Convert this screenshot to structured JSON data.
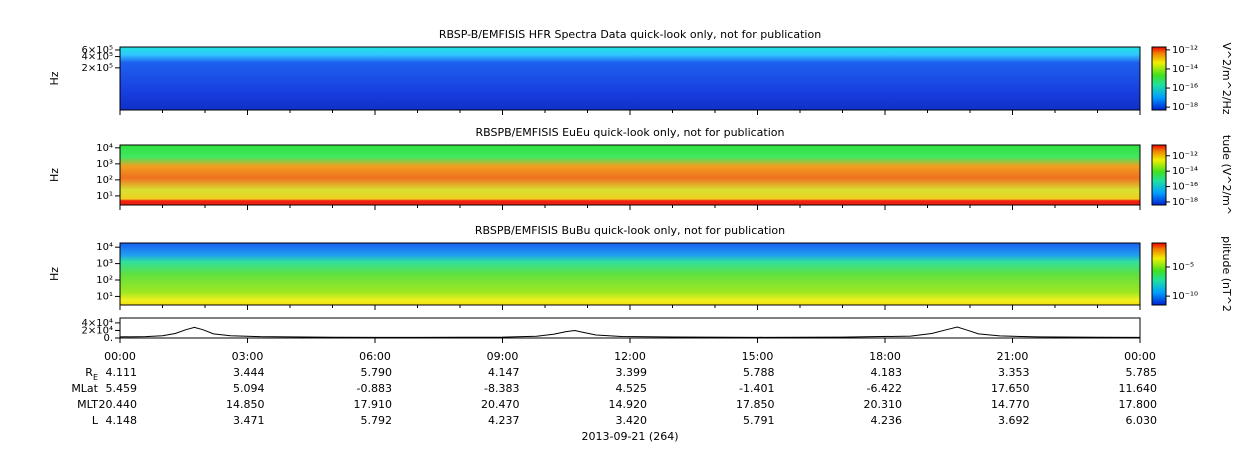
{
  "chart_data": [
    {
      "type": "spectrogram",
      "title": "RBSP-B/EMFISIS  HFR Spectra Data quick-look only, not for publication",
      "ylabel": "Hz",
      "ylog": true,
      "ylim": [
        15000,
        720000
      ],
      "yticks": [
        {
          "value": 200000,
          "label": "2×10⁵"
        },
        {
          "value": 400000,
          "label": "4×10⁵"
        },
        {
          "value": 600000,
          "label": "6×10⁵"
        }
      ],
      "colorbar_label": "V^2/m^2/Hz",
      "clim": [
        5e-19,
        2e-12
      ],
      "cticks": [
        {
          "value": 1e-12,
          "label": "10⁻¹²"
        },
        {
          "value": 1e-14,
          "label": "10⁻¹⁴"
        },
        {
          "value": 1e-16,
          "label": "10⁻¹⁶"
        },
        {
          "value": 1e-18,
          "label": "10⁻¹⁸"
        }
      ]
    },
    {
      "type": "spectrogram",
      "title": "RBSPB/EMFISIS  EuEu quick-look only, not for publication",
      "ylabel": "Hz",
      "ylog": true,
      "ylim": [
        2.7,
        15000
      ],
      "yticks": [
        {
          "value": 10,
          "label": "10¹"
        },
        {
          "value": 100,
          "label": "10²"
        },
        {
          "value": 1000,
          "label": "10³"
        },
        {
          "value": 10000,
          "label": "10⁴"
        }
      ],
      "colorbar_label": "tude (V^2/m^",
      "clim": [
        4e-19,
        2.5e-11
      ],
      "cticks": [
        {
          "value": 1e-12,
          "label": "10⁻¹²"
        },
        {
          "value": 1e-14,
          "label": "10⁻¹⁴"
        },
        {
          "value": 1e-16,
          "label": "10⁻¹⁶"
        },
        {
          "value": 1e-18,
          "label": "10⁻¹⁸"
        }
      ]
    },
    {
      "type": "spectrogram",
      "title": "RBSPB/EMFISIS  BuBu quick-look only, not for publication",
      "ylabel": "Hz",
      "ylog": true,
      "ylim": [
        3,
        18000
      ],
      "yticks": [
        {
          "value": 10,
          "label": "10¹"
        },
        {
          "value": 100,
          "label": "10²"
        },
        {
          "value": 1000,
          "label": "10³"
        },
        {
          "value": 10000,
          "label": "10⁴"
        }
      ],
      "colorbar_label": "plitude (nT^2",
      "clim": [
        3e-12,
        0.13
      ],
      "cticks": [
        {
          "value": 1e-05,
          "label": "10⁻⁵"
        },
        {
          "value": 1e-10,
          "label": "10⁻¹⁰"
        }
      ]
    },
    {
      "type": "line",
      "ylim": [
        0,
        53000
      ],
      "yticks": [
        {
          "value": 0,
          "label": "0."
        },
        {
          "value": 20000,
          "label": "2×10⁴"
        },
        {
          "value": 40000,
          "label": "4×10⁴"
        }
      ],
      "xlim": [
        0,
        24
      ],
      "xticks": [
        {
          "value": 0,
          "label": "00:00"
        },
        {
          "value": 3,
          "label": "03:00"
        },
        {
          "value": 6,
          "label": "06:00"
        },
        {
          "value": 9,
          "label": "09:00"
        },
        {
          "value": 12,
          "label": "12:00"
        },
        {
          "value": 15,
          "label": "15:00"
        },
        {
          "value": 18,
          "label": "18:00"
        },
        {
          "value": 21,
          "label": "21:00"
        },
        {
          "value": 24,
          "label": "00:00"
        }
      ],
      "xlabel": "2013-09-21 (264)",
      "x": [
        0,
        0.6,
        1.0,
        1.3,
        1.55,
        1.75,
        1.95,
        2.2,
        2.6,
        3.3,
        5,
        7,
        9,
        9.8,
        10.2,
        10.5,
        10.7,
        10.9,
        11.2,
        11.8,
        13,
        15,
        17,
        18.6,
        19.1,
        19.45,
        19.7,
        19.9,
        20.2,
        20.7,
        21.6,
        23,
        24
      ],
      "values": [
        3000,
        3500,
        6000,
        12000,
        22000,
        28000,
        22000,
        11000,
        6000,
        3500,
        2000,
        1600,
        2200,
        4500,
        10000,
        17000,
        20000,
        15000,
        8000,
        4000,
        2500,
        1800,
        2200,
        5000,
        12000,
        22000,
        29000,
        22000,
        11000,
        5500,
        3000,
        2000,
        1800
      ]
    }
  ],
  "ephemeris": {
    "rows": [
      {
        "label": "R",
        "sub": "E",
        "values": [
          "4.111",
          "3.444",
          "5.790",
          "4.147",
          "3.399",
          "5.788",
          "4.183",
          "3.353",
          "5.785"
        ]
      },
      {
        "label": "MLat",
        "values": [
          "5.459",
          "5.094",
          "-0.883",
          "-8.383",
          "4.525",
          "-1.401",
          "-6.422",
          "17.650",
          "11.640"
        ]
      },
      {
        "label": "MLT",
        "values": [
          "20.440",
          "14.850",
          "17.910",
          "20.470",
          "14.920",
          "17.850",
          "20.310",
          "14.770",
          "17.800"
        ]
      },
      {
        "label": "L",
        "values": [
          "4.148",
          "3.471",
          "5.792",
          "4.237",
          "3.420",
          "5.791",
          "4.236",
          "3.692",
          "6.030"
        ]
      }
    ]
  }
}
